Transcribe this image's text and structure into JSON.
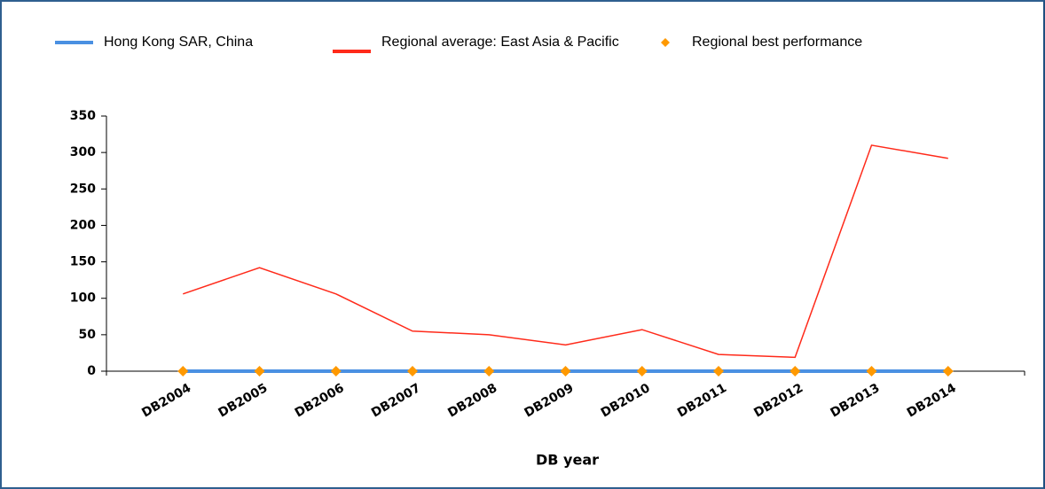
{
  "chart_data": {
    "type": "line",
    "x_label": "DB year",
    "categories": [
      "DB2004",
      "DB2005",
      "DB2006",
      "DB2007",
      "DB2008",
      "DB2009",
      "DB2010",
      "DB2011",
      "DB2012",
      "DB2013",
      "DB2014"
    ],
    "series": [
      {
        "name": "Hong Kong SAR, China",
        "color": "#4a90e2",
        "values": [
          0,
          0,
          0,
          0,
          0,
          0,
          0,
          0,
          0,
          0,
          0
        ]
      },
      {
        "name": "Regional average: East Asia & Pacific",
        "color": "#ff2a1a",
        "values": [
          106,
          142,
          106,
          55,
          50,
          36,
          57,
          23,
          19,
          310,
          292
        ]
      },
      {
        "name": "Regional best performance",
        "color": "#ff9900",
        "marker": "diamond",
        "values": [
          0,
          0,
          0,
          0,
          0,
          0,
          0,
          0,
          0,
          0,
          0
        ]
      }
    ],
    "ylim": [
      0,
      350
    ],
    "yticks": [
      0,
      50,
      100,
      150,
      200,
      250,
      300,
      350
    ]
  }
}
